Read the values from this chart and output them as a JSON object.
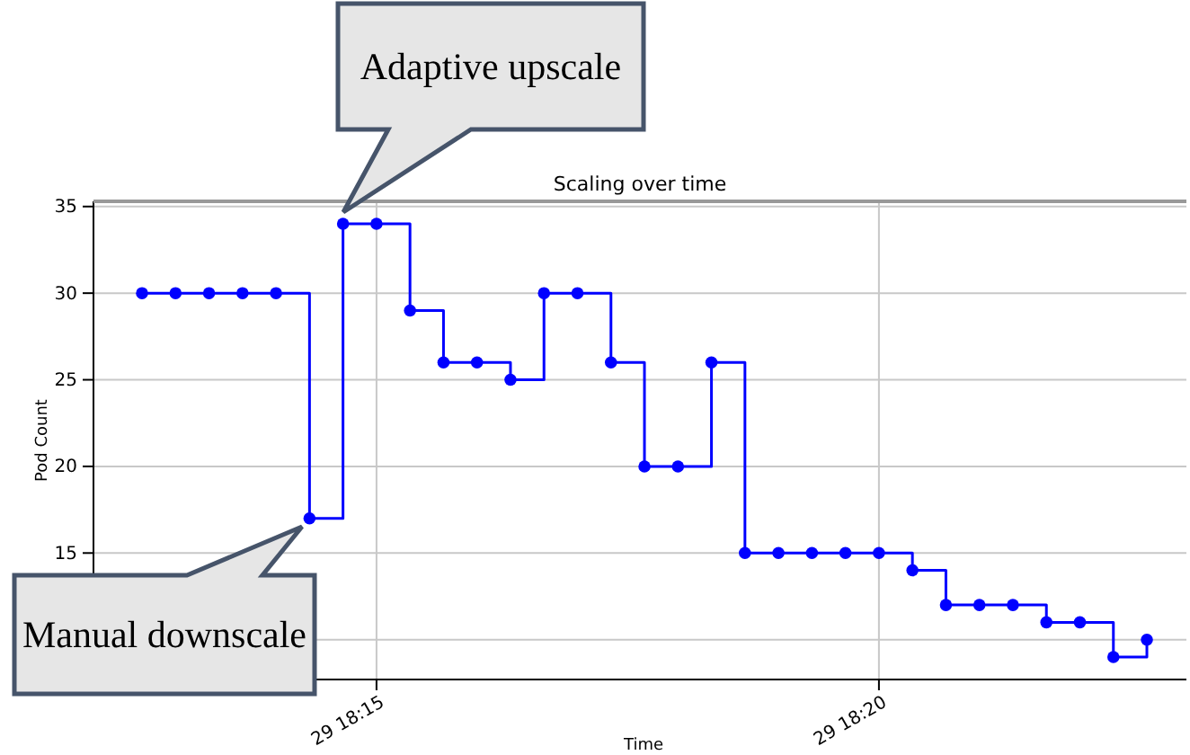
{
  "chart_data": {
    "type": "step",
    "title": "Scaling over time",
    "xlabel": "Time",
    "ylabel": "Pod Count",
    "categories": [
      null,
      null,
      null,
      null,
      null,
      null,
      null,
      "29 18:15",
      null,
      null,
      null,
      null,
      null,
      null,
      null,
      null,
      null,
      null,
      null,
      null,
      null,
      null,
      "29 18:20",
      null,
      null,
      null,
      null,
      null,
      null,
      null,
      null
    ],
    "series": [
      {
        "color": "#0000ff",
        "values": [
          30,
          30,
          30,
          30,
          30,
          17,
          34,
          34,
          29,
          26,
          26,
          25,
          30,
          30,
          26,
          20,
          20,
          26,
          15,
          15,
          15,
          15,
          15,
          14,
          12,
          12,
          12,
          11,
          11,
          9,
          10
        ]
      }
    ],
    "ylim": [
      7.7,
      35.3
    ],
    "yticks": [
      {
        "value": 10,
        "label": null
      },
      15,
      20,
      25,
      30,
      35
    ],
    "grid": true,
    "marker": "circle",
    "line_style": "solid",
    "annotations": [
      "Adaptive upscale",
      "Manual downscale"
    ]
  }
}
